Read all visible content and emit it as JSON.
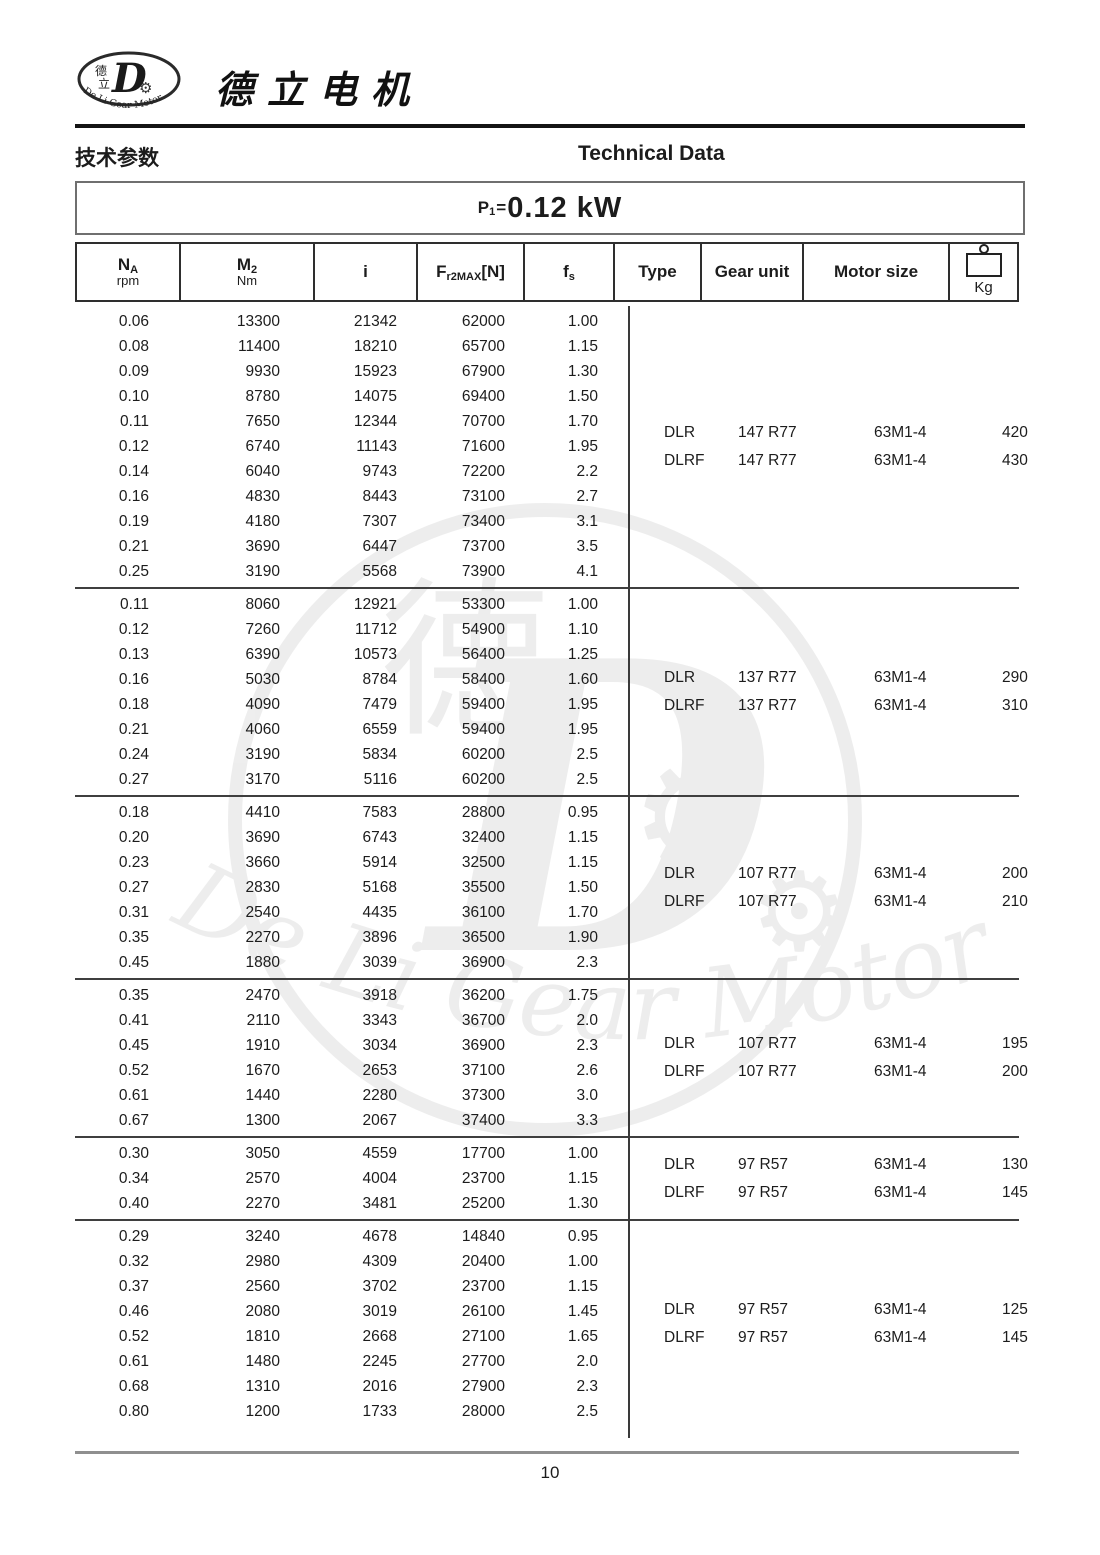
{
  "header": {
    "logo": {
      "zh_top": "德",
      "zh_bottom": "立",
      "monogram": "D",
      "caption": "De Li Gear Motor"
    },
    "company_name": "德立电机"
  },
  "titles": {
    "zh": "技术参数",
    "en": "Technical Data"
  },
  "power": {
    "symbol": "P",
    "symbol_sub": "1",
    "equals": "=",
    "value": "0.12 kW"
  },
  "icons": {
    "gear_glyph": "⚙"
  },
  "colors": {
    "text": "#1c1c1c",
    "header_border": "#2e2e2e",
    "section_separator": "#3f3f3f",
    "bottom_rule": "#8f8f8f",
    "top_rule": "#141414"
  },
  "table": {
    "columns": [
      {
        "main": "N",
        "sub": "A",
        "unit": "rpm"
      },
      {
        "main": "M",
        "sub": "2",
        "unit": "Nm"
      },
      {
        "main": "i"
      },
      {
        "main": "F",
        "sub": "r2MAX",
        "after": "[N]"
      },
      {
        "main": "f",
        "sub": "s"
      },
      {
        "main": "Type"
      },
      {
        "main": "Gear unit"
      },
      {
        "main": "Motor size"
      },
      {
        "kg_label": "Kg"
      }
    ],
    "sections": [
      {
        "rows": [
          [
            "0.06",
            "13300",
            "21342",
            "62000",
            "1.00"
          ],
          [
            "0.08",
            "11400",
            "18210",
            "65700",
            "1.15"
          ],
          [
            "0.09",
            "9930",
            "15923",
            "67900",
            "1.30"
          ],
          [
            "0.10",
            "8780",
            "14075",
            "69400",
            "1.50"
          ],
          [
            "0.11",
            "7650",
            "12344",
            "70700",
            "1.70"
          ],
          [
            "0.12",
            "6740",
            "11143",
            "71600",
            "1.95"
          ],
          [
            "0.14",
            "6040",
            "9743",
            "72200",
            "2.2"
          ],
          [
            "0.16",
            "4830",
            "8443",
            "73100",
            "2.7"
          ],
          [
            "0.19",
            "4180",
            "7307",
            "73400",
            "3.1"
          ],
          [
            "0.21",
            "3690",
            "6447",
            "73700",
            "3.5"
          ],
          [
            "0.25",
            "3190",
            "5568",
            "73900",
            "4.1"
          ]
        ],
        "variants": [
          {
            "type": "DLR",
            "gear_unit": "147 R77",
            "motor_size": "63M1-4",
            "kg": "420"
          },
          {
            "type": "DLRF",
            "gear_unit": "147 R77",
            "motor_size": "63M1-4",
            "kg": "430"
          }
        ]
      },
      {
        "rows": [
          [
            "0.11",
            "8060",
            "12921",
            "53300",
            "1.00"
          ],
          [
            "0.12",
            "7260",
            "11712",
            "54900",
            "1.10"
          ],
          [
            "0.13",
            "6390",
            "10573",
            "56400",
            "1.25"
          ],
          [
            "0.16",
            "5030",
            "8784",
            "58400",
            "1.60"
          ],
          [
            "0.18",
            "4090",
            "7479",
            "59400",
            "1.95"
          ],
          [
            "0.21",
            "4060",
            "6559",
            "59400",
            "1.95"
          ],
          [
            "0.24",
            "3190",
            "5834",
            "60200",
            "2.5"
          ],
          [
            "0.27",
            "3170",
            "5116",
            "60200",
            "2.5"
          ]
        ],
        "variants": [
          {
            "type": "DLR",
            "gear_unit": "137 R77",
            "motor_size": "63M1-4",
            "kg": "290"
          },
          {
            "type": "DLRF",
            "gear_unit": "137 R77",
            "motor_size": "63M1-4",
            "kg": "310"
          }
        ]
      },
      {
        "rows": [
          [
            "0.18",
            "4410",
            "7583",
            "28800",
            "0.95"
          ],
          [
            "0.20",
            "3690",
            "6743",
            "32400",
            "1.15"
          ],
          [
            "0.23",
            "3660",
            "5914",
            "32500",
            "1.15"
          ],
          [
            "0.27",
            "2830",
            "5168",
            "35500",
            "1.50"
          ],
          [
            "0.31",
            "2540",
            "4435",
            "36100",
            "1.70"
          ],
          [
            "0.35",
            "2270",
            "3896",
            "36500",
            "1.90"
          ],
          [
            "0.45",
            "1880",
            "3039",
            "36900",
            "2.3"
          ]
        ],
        "variants": [
          {
            "type": "DLR",
            "gear_unit": "107 R77",
            "motor_size": "63M1-4",
            "kg": "200"
          },
          {
            "type": "DLRF",
            "gear_unit": "107 R77",
            "motor_size": "63M1-4",
            "kg": "210"
          }
        ]
      },
      {
        "rows": [
          [
            "0.35",
            "2470",
            "3918",
            "36200",
            "1.75"
          ],
          [
            "0.41",
            "2110",
            "3343",
            "36700",
            "2.0"
          ],
          [
            "0.45",
            "1910",
            "3034",
            "36900",
            "2.3"
          ],
          [
            "0.52",
            "1670",
            "2653",
            "37100",
            "2.6"
          ],
          [
            "0.61",
            "1440",
            "2280",
            "37300",
            "3.0"
          ],
          [
            "0.67",
            "1300",
            "2067",
            "37400",
            "3.3"
          ]
        ],
        "variants": [
          {
            "type": "DLR",
            "gear_unit": "107 R77",
            "motor_size": "63M1-4",
            "kg": "195"
          },
          {
            "type": "DLRF",
            "gear_unit": "107 R77",
            "motor_size": "63M1-4",
            "kg": "200"
          }
        ]
      },
      {
        "rows": [
          [
            "0.30",
            "3050",
            "4559",
            "17700",
            "1.00"
          ],
          [
            "0.34",
            "2570",
            "4004",
            "23700",
            "1.15"
          ],
          [
            "0.40",
            "2270",
            "3481",
            "25200",
            "1.30"
          ]
        ],
        "variants": [
          {
            "type": "DLR",
            "gear_unit": "97 R57",
            "motor_size": "63M1-4",
            "kg": "130"
          },
          {
            "type": "DLRF",
            "gear_unit": "97 R57",
            "motor_size": "63M1-4",
            "kg": "145"
          }
        ]
      },
      {
        "rows": [
          [
            "0.29",
            "3240",
            "4678",
            "14840",
            "0.95"
          ],
          [
            "0.32",
            "2980",
            "4309",
            "20400",
            "1.00"
          ],
          [
            "0.37",
            "2560",
            "3702",
            "23700",
            "1.15"
          ],
          [
            "0.46",
            "2080",
            "3019",
            "26100",
            "1.45"
          ],
          [
            "0.52",
            "1810",
            "2668",
            "27100",
            "1.65"
          ],
          [
            "0.61",
            "1480",
            "2245",
            "27700",
            "2.0"
          ],
          [
            "0.68",
            "1310",
            "2016",
            "27900",
            "2.3"
          ],
          [
            "0.80",
            "1200",
            "1733",
            "28000",
            "2.5"
          ]
        ],
        "variants": [
          {
            "type": "DLR",
            "gear_unit": "97 R57",
            "motor_size": "63M1-4",
            "kg": "125"
          },
          {
            "type": "DLRF",
            "gear_unit": "97 R57",
            "motor_size": "63M1-4",
            "kg": "145"
          }
        ]
      }
    ]
  },
  "watermark": {
    "monogram": "D",
    "zh_char": "德",
    "caption": "De Li Gear Motor"
  },
  "page": {
    "number": "10"
  }
}
